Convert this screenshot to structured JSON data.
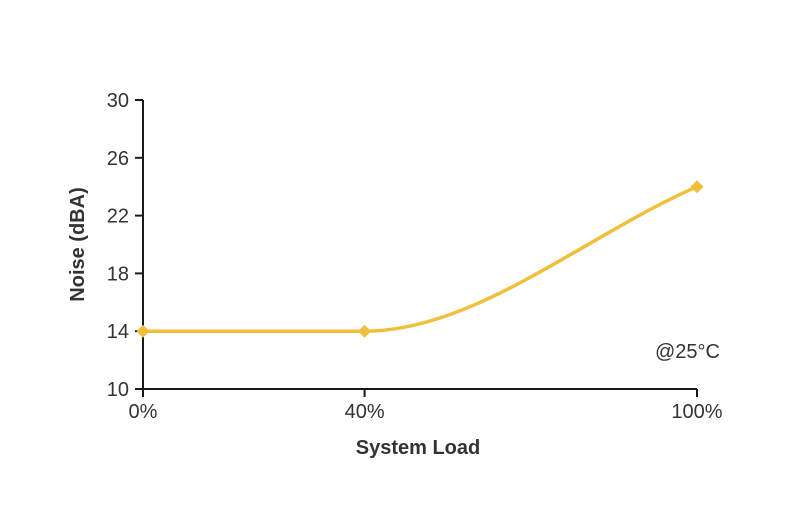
{
  "chart_data": {
    "type": "line",
    "title": "",
    "xlabel": "System Load",
    "ylabel": "Noise (dBA)",
    "categories": [
      "0%",
      "40%",
      "100%"
    ],
    "x": [
      0,
      40,
      100
    ],
    "xlim": [
      0,
      100
    ],
    "ylim": [
      10,
      30
    ],
    "yticks": [
      10,
      14,
      18,
      22,
      26,
      30
    ],
    "ytick_labels": [
      "10",
      "14",
      "18",
      "22",
      "26",
      "30"
    ],
    "series": [
      {
        "values": [
          14,
          14,
          24
        ]
      }
    ],
    "annotation": "@25°C",
    "line_color": "#f0bf3c",
    "grid": false,
    "legend": "none"
  }
}
